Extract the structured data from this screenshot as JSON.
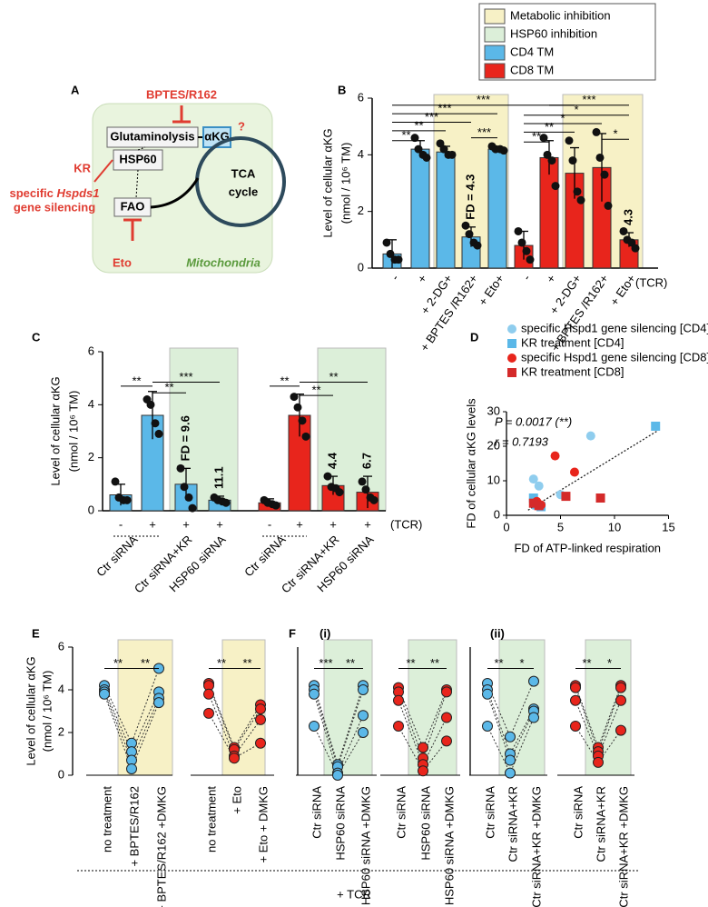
{
  "legend": {
    "entries": [
      {
        "label": "Metabolic inhibition",
        "color": "#f7f1c6"
      },
      {
        "label": "HSP60 inhibition",
        "color": "#dcefd9"
      },
      {
        "label": "CD4 TM",
        "color": "#5bb8e8"
      },
      {
        "label": "CD8 TM",
        "color": "#e8251c"
      }
    ]
  },
  "panel_a": {
    "letter": "A",
    "inhibitor_top": "BPTES/R162",
    "glutaminolysis": "Glutaminolysis",
    "akg": "αKG",
    "question": "?",
    "kr": "KR",
    "hsp60": "HSP60",
    "specific": "specific",
    "gene": "Hspds1",
    "silencing": "gene silencing",
    "tca": "TCA",
    "cycle": "cycle",
    "fao": "FAO",
    "eto": "Eto",
    "mitochondria": "Mitochondria"
  },
  "chart_data": [
    {
      "type": "bar",
      "panel": "B",
      "ylabel": [
        "Level of cellular αKG",
        "(nmol / 10⁶ TM)"
      ],
      "categories": [
        "-",
        "+",
        "+ 2-DG+",
        "+ BPTES /R162+",
        "+ Eto+",
        "-",
        "+",
        "+ 2-DG+",
        "+ BPTES /R162+",
        "+ Eto+"
      ],
      "tcr_label": "(TCR)",
      "colors": [
        "#5bb8e8",
        "#5bb8e8",
        "#5bb8e8",
        "#5bb8e8",
        "#5bb8e8",
        "#e8251c",
        "#e8251c",
        "#e8251c",
        "#e8251c",
        "#e8251c"
      ],
      "values": [
        0.5,
        4.2,
        4.1,
        1.1,
        4.2,
        0.8,
        3.9,
        3.35,
        3.55,
        1.0
      ],
      "errors": [
        0.5,
        0.3,
        0.2,
        0.35,
        0.1,
        0.5,
        0.6,
        0.9,
        1.2,
        0.25
      ],
      "points": [
        [
          0.9,
          0.5,
          0.3,
          0.3
        ],
        [
          4.6,
          4.2,
          4.0,
          3.9
        ],
        [
          4.4,
          4.2,
          4.0,
          4.0
        ],
        [
          1.5,
          1.2,
          0.9,
          0.8
        ],
        [
          4.3,
          4.2,
          4.2,
          4.15
        ],
        [
          1.3,
          0.9,
          0.6,
          0.3
        ],
        [
          4.6,
          4.0,
          3.8,
          2.9
        ],
        [
          4.5,
          3.8,
          2.7,
          2.4
        ],
        [
          4.8,
          3.9,
          3.3,
          2.2
        ],
        [
          1.3,
          1.0,
          0.9,
          0.7
        ]
      ],
      "annotations": [
        null,
        null,
        null,
        "FD = 4.3",
        null,
        null,
        null,
        null,
        null,
        "4.3"
      ],
      "significance": [
        "***",
        "***",
        "***",
        "**",
        "**",
        "***",
        "***",
        "**",
        "**",
        "*",
        "*",
        "*"
      ],
      "ylim": [
        0,
        6
      ],
      "yticks": [
        0,
        2,
        4,
        6
      ]
    },
    {
      "type": "bar",
      "panel": "C",
      "ylabel": [
        "Level of cellular αKG",
        "(nmol / 10⁶ TM)"
      ],
      "categories": [
        "-",
        "+",
        "+",
        "+",
        "-",
        "+",
        "+",
        "+"
      ],
      "conditions": [
        "Ctr siRNA",
        "Ctr siRNA+KR",
        "HSP60 siRNA",
        "Ctr siRNA",
        "Ctr siRNA+KR",
        "HSP60 siRNA"
      ],
      "tcr_label": "(TCR)",
      "colors": [
        "#5bb8e8",
        "#5bb8e8",
        "#5bb8e8",
        "#5bb8e8",
        "#e8251c",
        "#e8251c",
        "#e8251c",
        "#e8251c"
      ],
      "values": [
        0.6,
        3.6,
        1.0,
        0.4,
        0.3,
        3.6,
        0.95,
        0.7
      ],
      "errors": [
        0.4,
        0.9,
        0.6,
        0.15,
        0.15,
        0.8,
        0.35,
        0.6
      ],
      "points": [
        [
          1.1,
          0.5,
          0.4,
          0.4
        ],
        [
          4.2,
          4.0,
          3.3,
          2.9
        ],
        [
          1.6,
          0.9,
          0.5,
          0.1
        ],
        [
          0.5,
          0.4,
          0.35,
          0.3
        ],
        [
          0.4,
          0.3,
          0.25,
          0.2
        ],
        [
          4.3,
          3.9,
          3.4,
          2.8
        ],
        [
          1.3,
          0.9,
          0.85,
          0.7
        ],
        [
          1.1,
          0.8,
          0.5,
          0.4
        ]
      ],
      "annotations": [
        null,
        null,
        "FD = 9.6",
        "11.1",
        null,
        null,
        "4.4",
        "6.7"
      ],
      "significance": [
        "**",
        "***",
        "**",
        "**",
        "**",
        "**"
      ],
      "ylim": [
        0,
        6
      ],
      "yticks": [
        0,
        2,
        4,
        6
      ]
    },
    {
      "type": "scatter",
      "panel": "D",
      "xlabel": "FD of ATP-linked respiration",
      "ylabel": "FD of cellular αKG levels",
      "xlim": [
        0,
        15
      ],
      "xticks": [
        0,
        5,
        10,
        15
      ],
      "ylim": [
        0,
        30
      ],
      "yticks": [
        0,
        10,
        20,
        30
      ],
      "series": [
        {
          "name": "specific Hspd1 gene silencing [CD4]",
          "color": "#8fcdee",
          "marker": "circle",
          "x": [
            2.5,
            3.0,
            7.8,
            5.0,
            2.8
          ],
          "values": [
            10.5,
            8.5,
            23,
            6,
            3.5
          ]
        },
        {
          "name": "KR treatment [CD4]",
          "color": "#5bb8e8",
          "marker": "square",
          "x": [
            13.8,
            2.5,
            3.2,
            2.8
          ],
          "values": [
            25.8,
            5,
            2.5,
            3
          ]
        },
        {
          "name": "specific Hspd1 gene silencing [CD8]",
          "color": "#e8251c",
          "marker": "circle",
          "x": [
            4.5,
            6.3,
            2.8,
            3.2
          ],
          "values": [
            17.2,
            12.5,
            4,
            3
          ]
        },
        {
          "name": "KR treatment [CD8]",
          "color": "#d42a2a",
          "marker": "square",
          "x": [
            2.5,
            5.5,
            8.7,
            3.0
          ],
          "values": [
            3.5,
            5.5,
            5,
            2.8
          ]
        }
      ],
      "trend_x": [
        2,
        14
      ],
      "trend_y": [
        1.5,
        24.5
      ],
      "annotations": [
        "P = 0.0017 (**)",
        "r = 0.7193"
      ]
    },
    {
      "type": "paired",
      "panel": "E",
      "ylabel": [
        "Level of cellular αKG",
        "(nmol / 10⁶ TM)"
      ],
      "ylim": [
        0,
        6
      ],
      "yticks": [
        0,
        2,
        4,
        6
      ],
      "groups": [
        {
          "color": "#5bb8e8",
          "categories": [
            "no treatment",
            "+ BPTES/R162",
            "+ BPTES/R162 +DMKG"
          ],
          "values": [
            [
              4.2,
              4.0,
              3.9,
              3.8
            ],
            [
              1.5,
              1.1,
              0.7,
              0.3
            ],
            [
              5.0,
              3.9,
              3.6,
              3.4
            ]
          ]
        },
        {
          "color": "#e8251c",
          "categories": [
            "no treatment",
            "+ Eto",
            "+ Eto + DMKG"
          ],
          "values": [
            [
              4.3,
              4.2,
              3.8,
              2.9
            ],
            [
              1.3,
              1.2,
              0.9,
              0.8
            ],
            [
              3.3,
              3.1,
              2.6,
              1.5
            ]
          ]
        }
      ],
      "significance": [
        "**",
        "**",
        "**",
        "**"
      ]
    },
    {
      "type": "paired",
      "panel": "F",
      "subpanel": "(i)",
      "ylim": [
        0,
        6
      ],
      "groups": [
        {
          "color": "#5bb8e8",
          "categories": [
            "Ctr siRNA",
            "HSP60 siRNA",
            "HSP60 siRNA +DMKG"
          ],
          "values": [
            [
              4.2,
              4.0,
              3.8,
              2.3
            ],
            [
              0.5,
              0.4,
              0.1,
              0.0
            ],
            [
              4.2,
              4.0,
              2.8,
              2.0
            ]
          ]
        },
        {
          "color": "#e8251c",
          "categories": [
            "Ctr siRNA",
            "HSP60 siRNA",
            "HSP60 siRNA +DMKG"
          ],
          "values": [
            [
              4.1,
              3.9,
              3.5,
              2.3
            ],
            [
              1.3,
              0.8,
              0.5,
              0.2
            ],
            [
              4.0,
              3.9,
              2.7,
              1.6
            ]
          ]
        }
      ],
      "significance": [
        "***",
        "**",
        "**",
        "**"
      ]
    },
    {
      "type": "paired",
      "subpanel": "(ii)",
      "ylim": [
        0,
        6
      ],
      "groups": [
        {
          "color": "#5bb8e8",
          "categories": [
            "Ctr siRNA",
            "Ctr siRNA+KR",
            "Ctr siRNA+KR +DMKG"
          ],
          "values": [
            [
              4.3,
              4.0,
              3.8,
              2.3
            ],
            [
              1.8,
              1.0,
              0.7,
              0.1
            ],
            [
              4.4,
              3.1,
              3.0,
              2.7
            ]
          ]
        },
        {
          "color": "#e8251c",
          "categories": [
            "Ctr siRNA",
            "Ctr siRNA+KR",
            "Ctr siRNA+KR +DMKG"
          ],
          "values": [
            [
              4.2,
              4.1,
              3.5,
              2.3
            ],
            [
              1.3,
              1.1,
              0.9,
              0.6
            ],
            [
              4.2,
              4.1,
              3.5,
              2.1
            ]
          ]
        }
      ],
      "significance": [
        "**",
        "*",
        "**",
        "*"
      ]
    }
  ],
  "footer": "+ TCR"
}
